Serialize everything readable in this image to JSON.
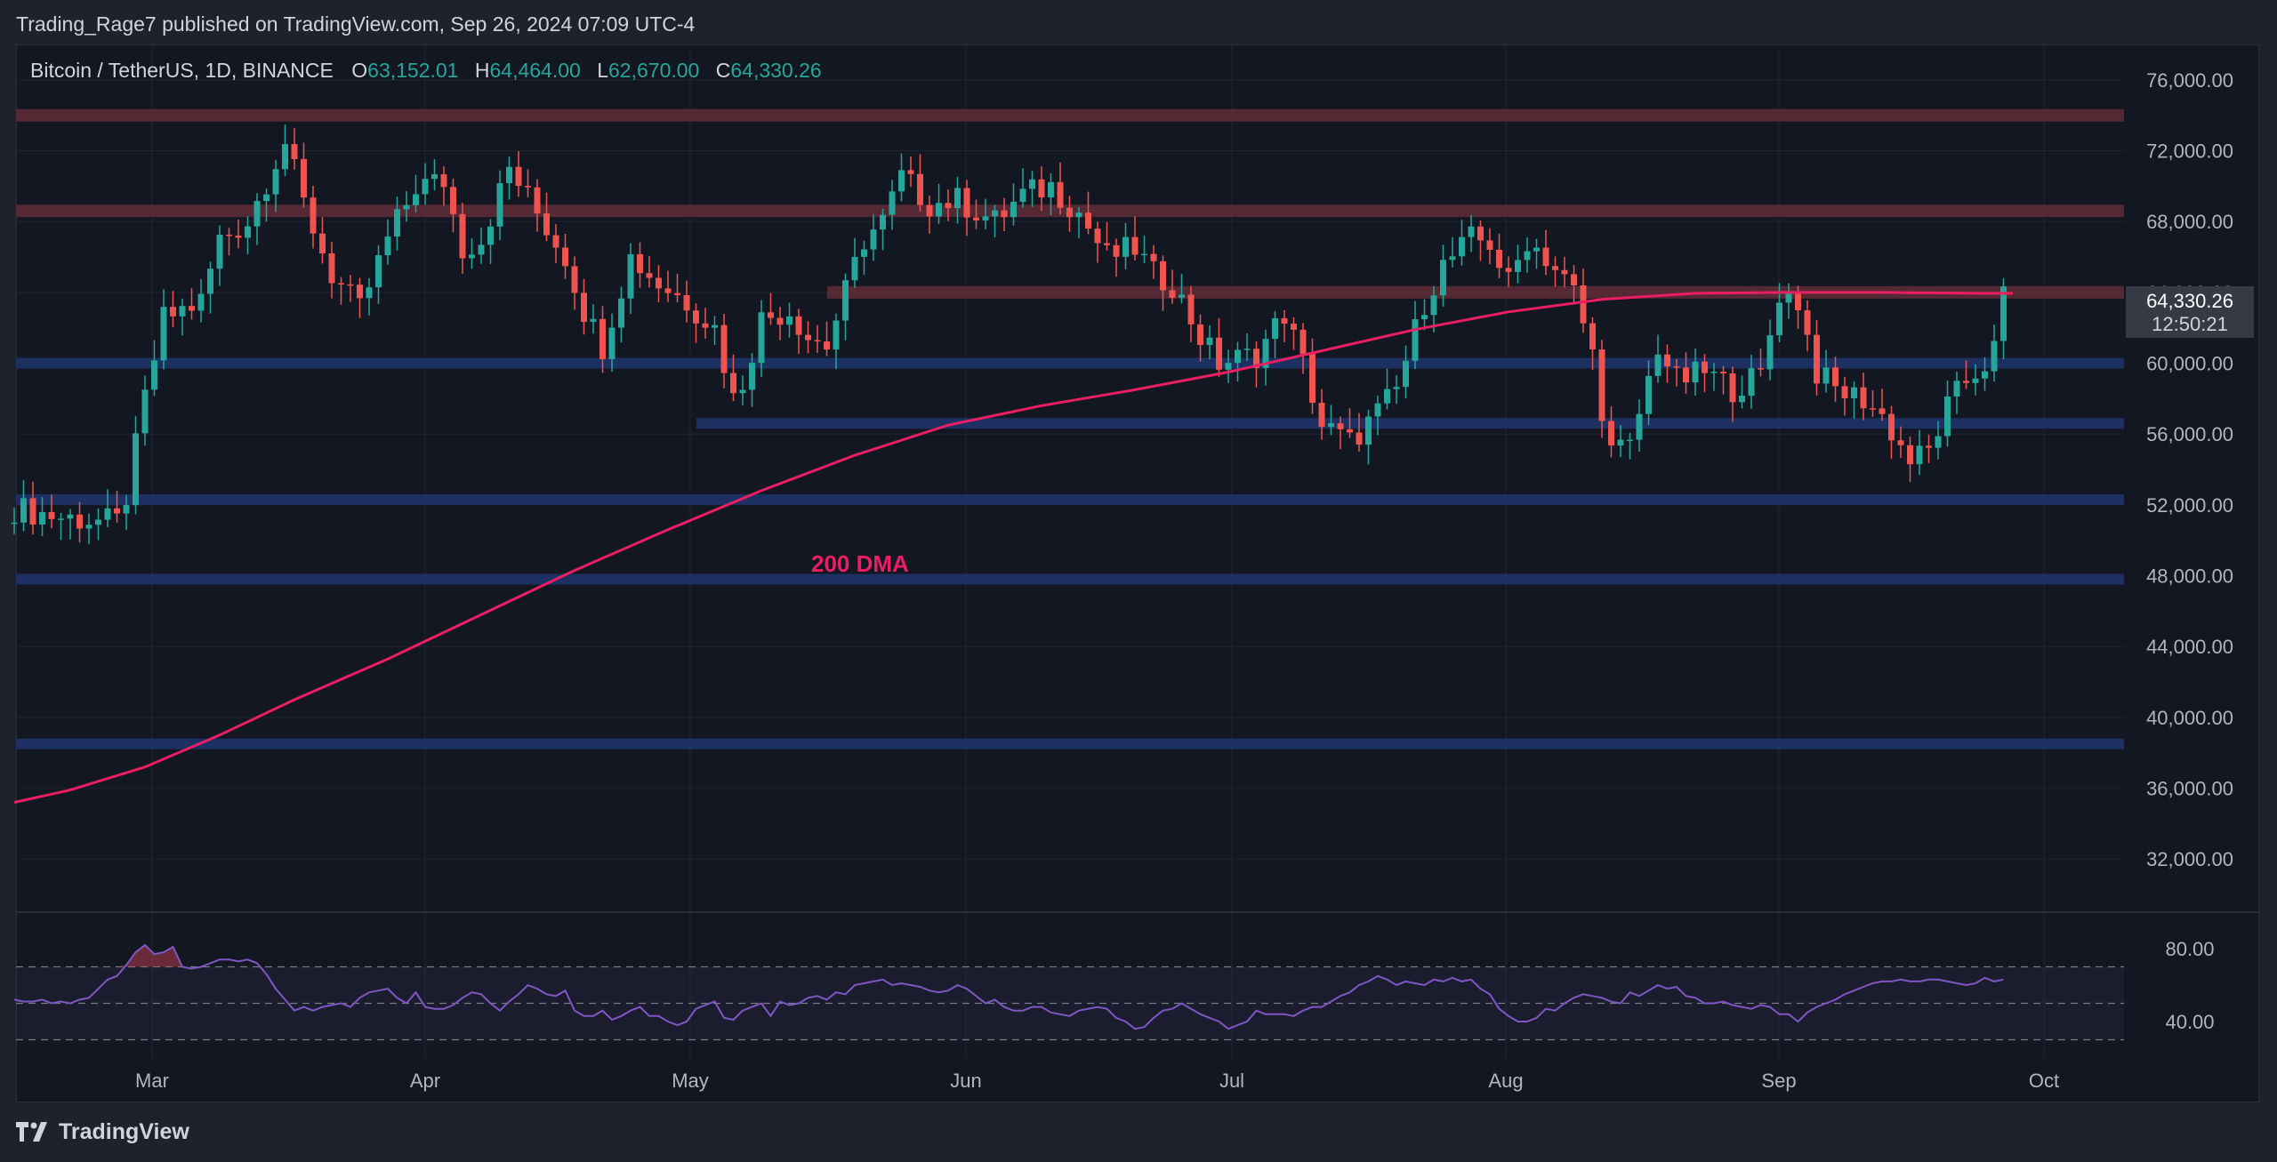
{
  "attribution": "Trading_Rage7 published on TradingView.com, Sep 26, 2024 07:09 UTC-4",
  "legend": {
    "symbol": "Bitcoin / TetherUS, 1D, BINANCE",
    "open_label": "O",
    "open": "63,152.01",
    "high_label": "H",
    "high": "64,464.00",
    "low_label": "L",
    "low": "62,670.00",
    "close_label": "C",
    "close": "64,330.26"
  },
  "price_tag": {
    "price": "64,330.26",
    "countdown": "12:50:21"
  },
  "brand": "TradingView",
  "colors": {
    "up": "#26a69a",
    "down": "#ef5350",
    "ma": "#e91e63",
    "resistance": "#5c2b35",
    "support": "#1e3266",
    "rsi": "#7e57c2"
  },
  "chart_data": {
    "type": "candlestick",
    "price_axis": {
      "range": [
        29000,
        78000
      ],
      "ticks": [
        "76,000.00",
        "72,000.00",
        "68,000.00",
        "64,000.00",
        "60,000.00",
        "56,000.00",
        "52,000.00",
        "48,000.00",
        "44,000.00",
        "40,000.00",
        "36,000.00",
        "32,000.00"
      ]
    },
    "time_axis": {
      "labels": [
        "Mar",
        "Apr",
        "May",
        "Jun",
        "Jul",
        "Aug",
        "Sep",
        "Oct"
      ]
    },
    "ohlc_current": {
      "open": 63152.01,
      "high": 64464.0,
      "low": 62670.0,
      "close": 64330.26
    },
    "ma_label": "200 DMA",
    "ma_points": [
      [
        0,
        35200
      ],
      [
        6,
        35900
      ],
      [
        14,
        37200
      ],
      [
        22,
        39000
      ],
      [
        30,
        41000
      ],
      [
        40,
        43300
      ],
      [
        50,
        45800
      ],
      [
        60,
        48300
      ],
      [
        70,
        50600
      ],
      [
        80,
        52800
      ],
      [
        90,
        54800
      ],
      [
        100,
        56500
      ],
      [
        110,
        57600
      ],
      [
        120,
        58500
      ],
      [
        130,
        59500
      ],
      [
        140,
        60700
      ],
      [
        150,
        61900
      ],
      [
        160,
        62900
      ],
      [
        170,
        63600
      ],
      [
        180,
        63950
      ],
      [
        190,
        64000
      ],
      [
        200,
        64000
      ],
      [
        210,
        63950
      ],
      [
        214,
        63950
      ]
    ],
    "resistance_levels": [
      74000,
      68600,
      64000
    ],
    "support_levels": [
      60000,
      56600,
      52300,
      47800,
      38500
    ],
    "rsi": {
      "ticks": [
        "80.00",
        "40.00"
      ],
      "range": [
        20,
        100
      ],
      "band": [
        30,
        70
      ],
      "values": [
        52,
        51,
        51,
        52,
        50,
        51,
        50,
        52,
        53,
        58,
        63,
        65,
        71,
        78,
        82,
        77,
        78,
        81,
        70,
        69,
        70,
        72,
        74,
        74,
        73,
        74,
        72,
        66,
        58,
        52,
        46,
        48,
        46,
        48,
        49,
        50,
        48,
        53,
        56,
        57,
        58,
        53,
        50,
        56,
        48,
        47,
        47,
        49,
        53,
        56,
        55,
        50,
        46,
        51,
        55,
        60,
        58,
        55,
        54,
        57,
        46,
        43,
        43,
        46,
        41,
        43,
        46,
        48,
        43,
        43,
        40,
        38,
        40,
        47,
        49,
        51,
        42,
        41,
        46,
        48,
        50,
        43,
        51,
        49,
        50,
        53,
        54,
        52,
        56,
        55,
        60,
        61,
        62,
        63,
        60,
        61,
        60,
        59,
        57,
        56,
        57,
        60,
        58,
        54,
        50,
        52,
        48,
        46,
        46,
        48,
        48,
        45,
        44,
        43,
        46,
        47,
        48,
        47,
        42,
        40,
        36,
        37,
        42,
        46,
        47,
        50,
        47,
        44,
        42,
        40,
        36,
        38,
        40,
        46,
        44,
        44,
        44,
        43,
        46,
        48,
        48,
        51,
        54,
        56,
        60,
        62,
        65,
        63,
        60,
        62,
        61,
        60,
        63,
        62,
        64,
        62,
        63,
        58,
        55,
        47,
        43,
        40,
        40,
        42,
        47,
        46,
        50,
        53,
        55,
        54,
        53,
        51,
        50,
        56,
        54,
        57,
        60,
        58,
        59,
        54,
        53,
        50,
        50,
        51,
        49,
        48,
        47,
        49,
        48,
        44,
        44,
        40,
        45,
        48,
        50,
        52,
        55,
        57,
        59,
        61,
        62,
        62,
        63,
        62,
        62,
        63,
        63,
        62,
        61,
        60,
        61,
        64,
        62,
        63
      ]
    }
  }
}
